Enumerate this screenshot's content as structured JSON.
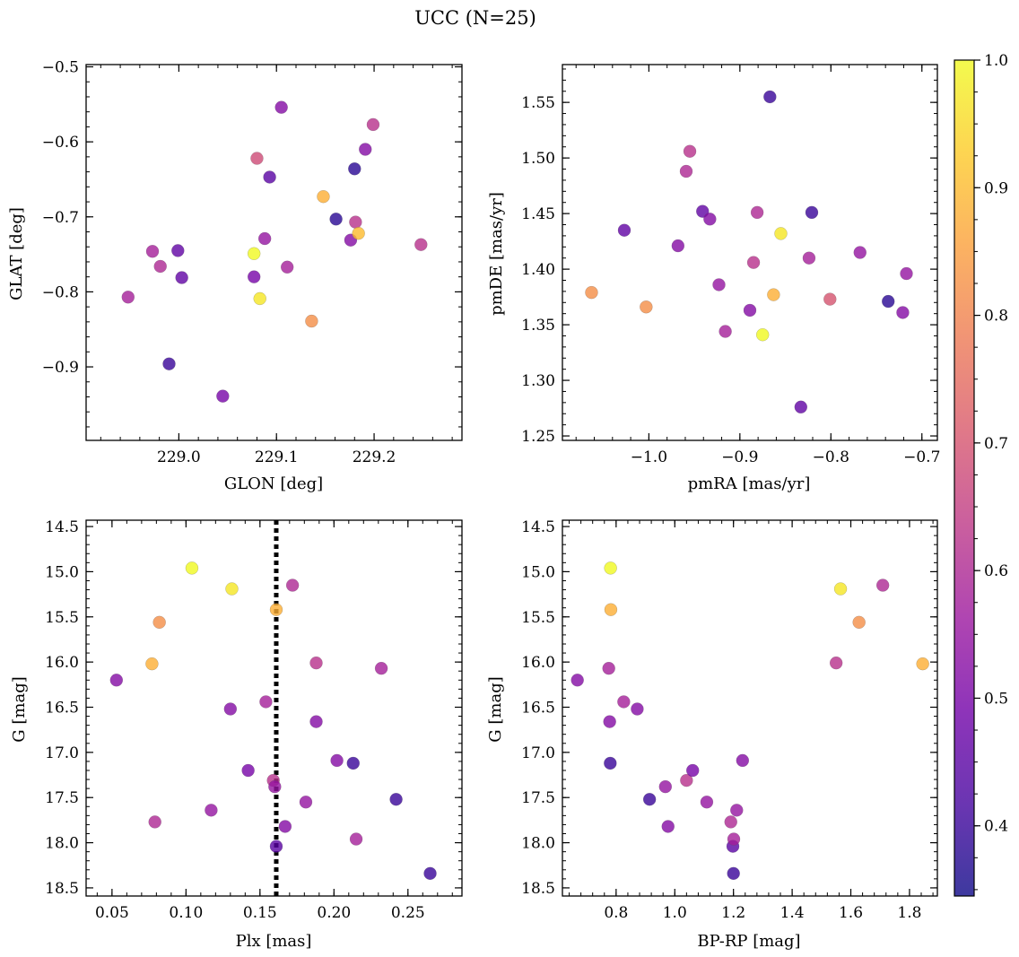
{
  "figure": {
    "title": "UCC (N=25)"
  },
  "colormap": {
    "name": "plasma",
    "stops": [
      "#0d0887",
      "#46039f",
      "#7201a8",
      "#9c179e",
      "#bd3786",
      "#d8576b",
      "#ed7953",
      "#fb9f3a",
      "#fdca26",
      "#f0f921"
    ],
    "alpha": 0.8,
    "range": [
      0.345,
      1.0
    ],
    "ticks": [
      0.4,
      0.5,
      0.6,
      0.7,
      0.8,
      0.9,
      1.0
    ],
    "tick_labels": [
      "0.4",
      "0.5",
      "0.6",
      "0.7",
      "0.8",
      "0.9",
      "1.0"
    ]
  },
  "chart_data": [
    {
      "type": "scatter",
      "id": "glon-glat",
      "xlabel": "GLON [deg]",
      "ylabel": "GLAT [deg]",
      "xlim": [
        228.905,
        229.29
      ],
      "ylim": [
        -0.998,
        -0.497
      ],
      "xticks": [
        229.0,
        229.1,
        229.2
      ],
      "xtick_labels": [
        "229.0",
        "229.1",
        "229.2"
      ],
      "yticks": [
        -0.9,
        -0.8,
        -0.7,
        -0.6,
        -0.5
      ],
      "ytick_labels": [
        "−0.9",
        "−0.8",
        "−0.7",
        "−0.6",
        "−0.5"
      ],
      "points": [
        {
          "x": 228.948,
          "y": -0.807,
          "c": 0.58
        },
        {
          "x": 228.973,
          "y": -0.746,
          "c": 0.58
        },
        {
          "x": 228.981,
          "y": -0.766,
          "c": 0.6
        },
        {
          "x": 228.99,
          "y": -0.896,
          "c": 0.4
        },
        {
          "x": 228.999,
          "y": -0.745,
          "c": 0.46
        },
        {
          "x": 229.003,
          "y": -0.781,
          "c": 0.46
        },
        {
          "x": 229.045,
          "y": -0.939,
          "c": 0.5
        },
        {
          "x": 229.077,
          "y": -0.749,
          "c": 1.0
        },
        {
          "x": 229.077,
          "y": -0.78,
          "c": 0.5
        },
        {
          "x": 229.08,
          "y": -0.622,
          "c": 0.68
        },
        {
          "x": 229.083,
          "y": -0.809,
          "c": 0.97
        },
        {
          "x": 229.088,
          "y": -0.729,
          "c": 0.55
        },
        {
          "x": 229.093,
          "y": -0.647,
          "c": 0.45
        },
        {
          "x": 229.105,
          "y": -0.554,
          "c": 0.52
        },
        {
          "x": 229.111,
          "y": -0.767,
          "c": 0.58
        },
        {
          "x": 229.136,
          "y": -0.839,
          "c": 0.82
        },
        {
          "x": 229.148,
          "y": -0.673,
          "c": 0.88
        },
        {
          "x": 229.161,
          "y": -0.703,
          "c": 0.38
        },
        {
          "x": 229.176,
          "y": -0.731,
          "c": 0.52
        },
        {
          "x": 229.18,
          "y": -0.636,
          "c": 0.38
        },
        {
          "x": 229.181,
          "y": -0.707,
          "c": 0.62
        },
        {
          "x": 229.184,
          "y": -0.722,
          "c": 0.9
        },
        {
          "x": 229.191,
          "y": -0.61,
          "c": 0.52
        },
        {
          "x": 229.199,
          "y": -0.577,
          "c": 0.62
        },
        {
          "x": 229.248,
          "y": -0.737,
          "c": 0.62
        }
      ]
    },
    {
      "type": "scatter",
      "id": "pmra-pmde",
      "xlabel": "pmRA [mas/yr]",
      "ylabel": "pmDE [mas/yr]",
      "xlim": [
        -1.095,
        -0.683
      ],
      "ylim": [
        1.246,
        1.584
      ],
      "xticks": [
        -1.0,
        -0.9,
        -0.8,
        -0.7
      ],
      "xtick_labels": [
        "−1.0",
        "−0.9",
        "−0.8",
        "−0.7"
      ],
      "yticks": [
        1.25,
        1.3,
        1.35,
        1.4,
        1.45,
        1.5,
        1.55
      ],
      "ytick_labels": [
        "1.25",
        "1.30",
        "1.35",
        "1.40",
        "1.45",
        "1.50",
        "1.55"
      ],
      "points": [
        {
          "x": -1.063,
          "y": 1.379,
          "c": 0.82
        },
        {
          "x": -1.027,
          "y": 1.435,
          "c": 0.46
        },
        {
          "x": -1.003,
          "y": 1.366,
          "c": 0.82
        },
        {
          "x": -0.968,
          "y": 1.421,
          "c": 0.52
        },
        {
          "x": -0.959,
          "y": 1.488,
          "c": 0.6
        },
        {
          "x": -0.955,
          "y": 1.506,
          "c": 0.62
        },
        {
          "x": -0.941,
          "y": 1.452,
          "c": 0.46
        },
        {
          "x": -0.933,
          "y": 1.445,
          "c": 0.52
        },
        {
          "x": -0.923,
          "y": 1.386,
          "c": 0.55
        },
        {
          "x": -0.916,
          "y": 1.344,
          "c": 0.58
        },
        {
          "x": -0.889,
          "y": 1.363,
          "c": 0.52
        },
        {
          "x": -0.885,
          "y": 1.406,
          "c": 0.62
        },
        {
          "x": -0.881,
          "y": 1.451,
          "c": 0.6
        },
        {
          "x": -0.875,
          "y": 1.341,
          "c": 1.0
        },
        {
          "x": -0.867,
          "y": 1.555,
          "c": 0.4
        },
        {
          "x": -0.863,
          "y": 1.377,
          "c": 0.88
        },
        {
          "x": -0.855,
          "y": 1.432,
          "c": 0.97
        },
        {
          "x": -0.833,
          "y": 1.276,
          "c": 0.46
        },
        {
          "x": -0.824,
          "y": 1.41,
          "c": 0.58
        },
        {
          "x": -0.821,
          "y": 1.451,
          "c": 0.4
        },
        {
          "x": -0.801,
          "y": 1.373,
          "c": 0.7
        },
        {
          "x": -0.768,
          "y": 1.415,
          "c": 0.55
        },
        {
          "x": -0.737,
          "y": 1.371,
          "c": 0.38
        },
        {
          "x": -0.721,
          "y": 1.361,
          "c": 0.52
        },
        {
          "x": -0.717,
          "y": 1.396,
          "c": 0.55
        }
      ]
    },
    {
      "type": "scatter",
      "id": "plx-g",
      "xlabel": "Plx [mas]",
      "ylabel": "G [mag]",
      "xlim": [
        0.0325,
        0.2865
      ],
      "ylim": [
        18.59,
        14.43
      ],
      "y_inverted": true,
      "xticks": [
        0.05,
        0.1,
        0.15,
        0.2,
        0.25
      ],
      "xtick_labels": [
        "0.05",
        "0.10",
        "0.15",
        "0.20",
        "0.25"
      ],
      "yticks": [
        14.5,
        15.0,
        15.5,
        16.0,
        16.5,
        17.0,
        17.5,
        18.0,
        18.5
      ],
      "ytick_labels": [
        "14.5",
        "15.0",
        "15.5",
        "16.0",
        "16.5",
        "17.0",
        "17.5",
        "18.0",
        "18.5"
      ],
      "vline": {
        "x": 0.161,
        "style": "dotted"
      },
      "points": [
        {
          "x": 0.053,
          "y": 16.2,
          "c": 0.52
        },
        {
          "x": 0.077,
          "y": 16.02,
          "c": 0.88
        },
        {
          "x": 0.079,
          "y": 17.77,
          "c": 0.6
        },
        {
          "x": 0.082,
          "y": 15.56,
          "c": 0.82
        },
        {
          "x": 0.104,
          "y": 14.96,
          "c": 1.0
        },
        {
          "x": 0.117,
          "y": 17.64,
          "c": 0.55
        },
        {
          "x": 0.13,
          "y": 16.52,
          "c": 0.52
        },
        {
          "x": 0.131,
          "y": 15.19,
          "c": 0.97
        },
        {
          "x": 0.142,
          "y": 17.2,
          "c": 0.5
        },
        {
          "x": 0.154,
          "y": 16.44,
          "c": 0.58
        },
        {
          "x": 0.159,
          "y": 17.31,
          "c": 0.62
        },
        {
          "x": 0.16,
          "y": 17.38,
          "c": 0.55
        },
        {
          "x": 0.161,
          "y": 15.42,
          "c": 0.88
        },
        {
          "x": 0.161,
          "y": 18.04,
          "c": 0.45
        },
        {
          "x": 0.167,
          "y": 17.82,
          "c": 0.52
        },
        {
          "x": 0.172,
          "y": 15.15,
          "c": 0.6
        },
        {
          "x": 0.181,
          "y": 17.55,
          "c": 0.55
        },
        {
          "x": 0.188,
          "y": 16.01,
          "c": 0.62
        },
        {
          "x": 0.188,
          "y": 16.66,
          "c": 0.52
        },
        {
          "x": 0.202,
          "y": 17.09,
          "c": 0.52
        },
        {
          "x": 0.213,
          "y": 17.12,
          "c": 0.4
        },
        {
          "x": 0.215,
          "y": 17.96,
          "c": 0.58
        },
        {
          "x": 0.232,
          "y": 16.07,
          "c": 0.58
        },
        {
          "x": 0.242,
          "y": 17.52,
          "c": 0.4
        },
        {
          "x": 0.265,
          "y": 18.34,
          "c": 0.4
        }
      ]
    },
    {
      "type": "scatter",
      "id": "bprp-g",
      "xlabel": "BP-RP [mag]",
      "ylabel": "G [mag]",
      "xlim": [
        0.617,
        1.895
      ],
      "ylim": [
        18.59,
        14.43
      ],
      "y_inverted": true,
      "xticks": [
        0.8,
        1.0,
        1.2,
        1.4,
        1.6,
        1.8
      ],
      "xtick_labels": [
        "0.8",
        "1.0",
        "1.2",
        "1.4",
        "1.6",
        "1.8"
      ],
      "yticks": [
        14.5,
        15.0,
        15.5,
        16.0,
        16.5,
        17.0,
        17.5,
        18.0,
        18.5
      ],
      "ytick_labels": [
        "14.5",
        "15.0",
        "15.5",
        "16.0",
        "16.5",
        "17.0",
        "17.5",
        "18.0",
        "18.5"
      ],
      "points": [
        {
          "x": 0.668,
          "y": 16.2,
          "c": 0.52
        },
        {
          "x": 0.775,
          "y": 16.07,
          "c": 0.58
        },
        {
          "x": 0.778,
          "y": 16.66,
          "c": 0.52
        },
        {
          "x": 0.78,
          "y": 17.12,
          "c": 0.4
        },
        {
          "x": 0.781,
          "y": 14.96,
          "c": 1.0
        },
        {
          "x": 0.782,
          "y": 15.42,
          "c": 0.88
        },
        {
          "x": 0.826,
          "y": 16.44,
          "c": 0.58
        },
        {
          "x": 0.872,
          "y": 16.52,
          "c": 0.52
        },
        {
          "x": 0.914,
          "y": 17.52,
          "c": 0.4
        },
        {
          "x": 0.968,
          "y": 17.38,
          "c": 0.55
        },
        {
          "x": 0.977,
          "y": 17.82,
          "c": 0.52
        },
        {
          "x": 1.04,
          "y": 17.31,
          "c": 0.62
        },
        {
          "x": 1.061,
          "y": 17.2,
          "c": 0.5
        },
        {
          "x": 1.109,
          "y": 17.55,
          "c": 0.55
        },
        {
          "x": 1.191,
          "y": 17.77,
          "c": 0.6
        },
        {
          "x": 1.198,
          "y": 18.04,
          "c": 0.45
        },
        {
          "x": 1.2,
          "y": 18.34,
          "c": 0.4
        },
        {
          "x": 1.201,
          "y": 17.96,
          "c": 0.58
        },
        {
          "x": 1.211,
          "y": 17.64,
          "c": 0.55
        },
        {
          "x": 1.231,
          "y": 17.09,
          "c": 0.52
        },
        {
          "x": 1.55,
          "y": 16.01,
          "c": 0.62
        },
        {
          "x": 1.565,
          "y": 15.19,
          "c": 0.97
        },
        {
          "x": 1.628,
          "y": 15.56,
          "c": 0.82
        },
        {
          "x": 1.709,
          "y": 15.15,
          "c": 0.6
        },
        {
          "x": 1.845,
          "y": 16.02,
          "c": 0.88
        }
      ]
    }
  ]
}
